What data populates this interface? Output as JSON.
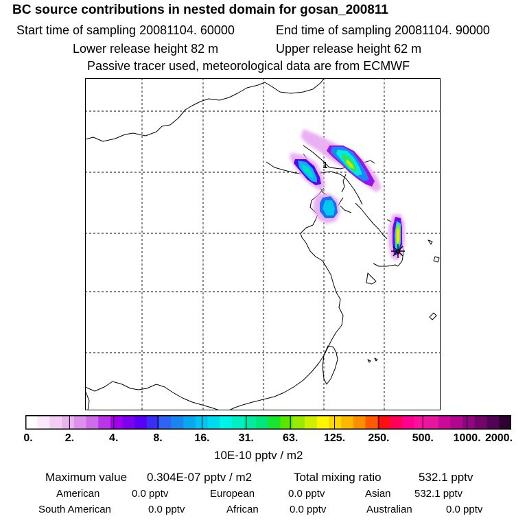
{
  "header": {
    "title": "BC  source contributions in nested domain for gosan_200811",
    "start_time": "Start time of sampling 20081104. 60000",
    "end_time": "End time of sampling 20081104. 90000",
    "lower_height": "Lower release height   82 m",
    "upper_height": "Upper release height   62 m",
    "tracer_note": "Passive tracer used, meteorological data are from ECMWF"
  },
  "map": {
    "release_marker_label": "1"
  },
  "colorbar": {
    "colors": [
      "#ffffff",
      "#fbe9fb",
      "#f4cdf5",
      "#eab2ef",
      "#dd90eb",
      "#cf6ce8",
      "#bb35e8",
      "#a100ea",
      "#7d00f0",
      "#5a00f5",
      "#3a2df5",
      "#2e63f3",
      "#1b84f0",
      "#0aa6f0",
      "#03c4f0",
      "#00dcef",
      "#00f5e8",
      "#00f0c4",
      "#00eaa0",
      "#00e679",
      "#19e52e",
      "#5ae600",
      "#99ea00",
      "#cdf000",
      "#fff500",
      "#ffd700",
      "#ffb800",
      "#ff8f00",
      "#ff5a00",
      "#ff1010",
      "#ff0055",
      "#ff0090",
      "#f7119e",
      "#e6169f",
      "#cc0a99",
      "#b00690",
      "#900680",
      "#73046a",
      "#520355",
      "#2e0130"
    ],
    "tick_labels": [
      "0.",
      "2.",
      "4.",
      "8.",
      "16.",
      "31.",
      "63.",
      "125.",
      "250.",
      "500.",
      "1000.",
      "2000."
    ],
    "unit": "10E-10 pptv / m2"
  },
  "summary": {
    "max_label": "Maximum value",
    "max_value": "0.304E-07 pptv / m2",
    "total_label": "Total mixing ratio",
    "total_value": "532.1 pptv"
  },
  "regions": [
    {
      "name": "American",
      "value": "0.0 pptv"
    },
    {
      "name": "European",
      "value": "0.0 pptv"
    },
    {
      "name": "Asian",
      "value": "532.1 pptv"
    },
    {
      "name": "South American",
      "value": "0.0 pptv"
    },
    {
      "name": "African",
      "value": "0.0 pptv"
    },
    {
      "name": "Australian",
      "value": "0.0 pptv"
    }
  ]
}
